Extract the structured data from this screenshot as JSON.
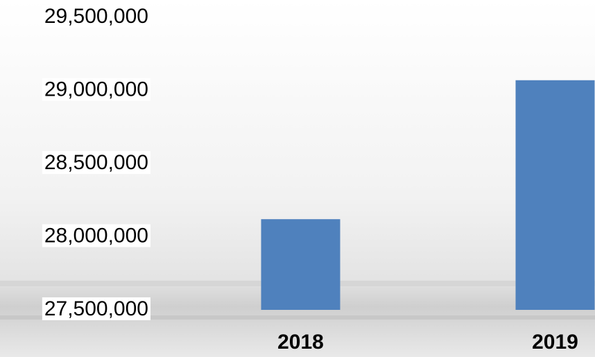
{
  "chart_data": {
    "type": "bar",
    "categories": [
      "2018",
      "2019"
    ],
    "values": [
      28120000,
      29070000
    ],
    "color": "#4f81bd",
    "ylim": [
      27500000,
      29500000
    ],
    "yticks": [
      {
        "value": 27500000,
        "label": "27,500,000"
      },
      {
        "value": 28000000,
        "label": "28,000,000"
      },
      {
        "value": 28500000,
        "label": "28,500,000"
      },
      {
        "value": 29000000,
        "label": "29,000,000"
      },
      {
        "value": 29500000,
        "label": "29,500,000"
      }
    ],
    "grid": false
  }
}
